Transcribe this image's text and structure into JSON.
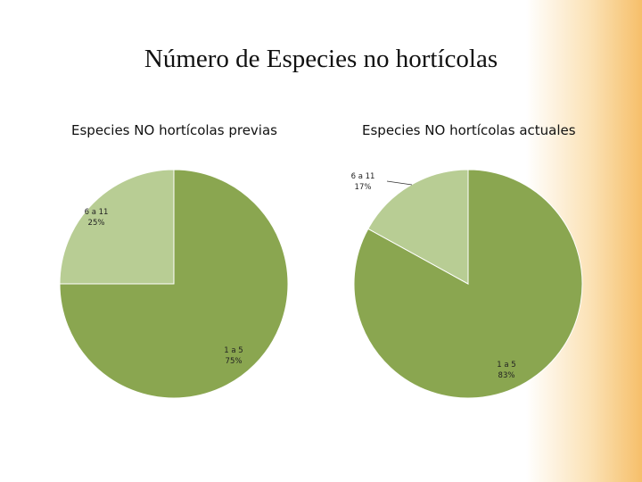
{
  "slide": {
    "title": "Número de Especies no hortícolas"
  },
  "colors": {
    "slice_main": "#8aa650",
    "slice_secondary": "#b8cd94",
    "accent_gradient": "#f6bf6a"
  },
  "chart_data": [
    {
      "type": "pie",
      "title": "Especies NO hortícolas previas",
      "slices": [
        {
          "name": "1 a 5",
          "value": 75,
          "label": "75%"
        },
        {
          "name": "6 a 11",
          "value": 25,
          "label": "25%"
        }
      ]
    },
    {
      "type": "pie",
      "title": "Especies NO hortícolas actuales",
      "slices": [
        {
          "name": "1 a 5",
          "value": 83,
          "label": "83%"
        },
        {
          "name": "6 a 11",
          "value": 17,
          "label": "17%"
        }
      ]
    }
  ]
}
